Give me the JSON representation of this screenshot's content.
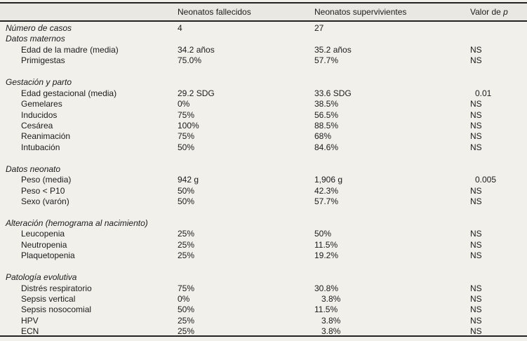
{
  "table": {
    "colors": {
      "background": "#f1f0eb",
      "header_band": "#e9e8e2",
      "rule": "#232323",
      "text": "#1b1b1b"
    },
    "header": {
      "col_deceased": "Neonatos fallecidos",
      "col_survivors": "Neonatos supervivientes",
      "col_p_prefix": "Valor de ",
      "col_p_italic": "p"
    },
    "groups": [
      {
        "title": "Número de casos",
        "gap_before": false,
        "title_values": {
          "deceased": "4",
          "survivors": "27",
          "p": ""
        },
        "rows": []
      },
      {
        "title": "Datos maternos",
        "gap_before": false,
        "rows": [
          {
            "label": "Edad de la madre (media)",
            "deceased": "34.2 años",
            "survivors": "35.2 años",
            "p": "NS"
          },
          {
            "label": "Primigestas",
            "deceased": "75.0%",
            "survivors": "57.7%",
            "p": "NS"
          }
        ]
      },
      {
        "title": "Gestación y parto",
        "gap_before": true,
        "rows": [
          {
            "label": "Edad gestacional (media)",
            "deceased": "29.2 SDG",
            "survivors": "33.6 SDG",
            "p": "0.01"
          },
          {
            "label": "Gemelares",
            "deceased": "0%",
            "survivors": "38.5%",
            "p": "NS"
          },
          {
            "label": "Inducidos",
            "deceased": "75%",
            "survivors": "56.5%",
            "p": "NS"
          },
          {
            "label": "Cesárea",
            "deceased": "100%",
            "survivors": "88.5%",
            "p": "NS"
          },
          {
            "label": "Reanimación",
            "deceased": "75%",
            "survivors": "68%",
            "p": "NS"
          },
          {
            "label": "Intubación",
            "deceased": "50%",
            "survivors": "84.6%",
            "p": "NS"
          }
        ]
      },
      {
        "title": "Datos neonato",
        "gap_before": true,
        "rows": [
          {
            "label": "Peso (media)",
            "deceased": "942 g",
            "survivors": "1,906 g",
            "p": "0.005"
          },
          {
            "label": "Peso < P10",
            "deceased": "50%",
            "survivors": "42.3%",
            "p": "NS"
          },
          {
            "label": "Sexo (varón)",
            "deceased": "50%",
            "survivors": "57.7%",
            "p": "NS"
          }
        ]
      },
      {
        "title": "Alteración (hemograma al nacimiento)",
        "gap_before": true,
        "rows": [
          {
            "label": "Leucopenia",
            "deceased": "25%",
            "survivors": "50%",
            "p": "NS"
          },
          {
            "label": "Neutropenia",
            "deceased": "25%",
            "survivors": "11.5%",
            "p": "NS"
          },
          {
            "label": "Plaquetopenia",
            "deceased": "25%",
            "survivors": "19.2%",
            "p": "NS"
          }
        ]
      },
      {
        "title": "Patología evolutiva",
        "gap_before": true,
        "rows": [
          {
            "label": "Distrés respiratorio",
            "deceased": "75%",
            "survivors": "30.8%",
            "p": "NS"
          },
          {
            "label": "Sepsis vertical",
            "deceased": "0%",
            "survivors": "3.8%",
            "p": "NS"
          },
          {
            "label": "Sepsis nosocomial",
            "deceased": "50%",
            "survivors": "11.5%",
            "p": "NS"
          },
          {
            "label": "HPV",
            "deceased": "25%",
            "survivors": "3.8%",
            "p": "NS"
          },
          {
            "label": "ECN",
            "deceased": "25%",
            "survivors": "3.8%",
            "p": "NS"
          }
        ]
      }
    ]
  }
}
